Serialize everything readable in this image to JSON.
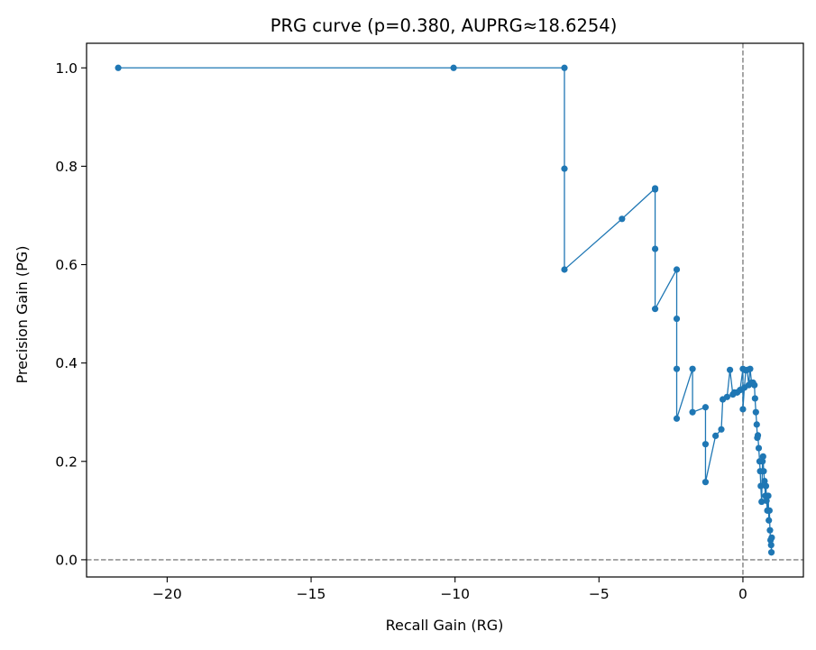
{
  "chart_data": {
    "type": "line",
    "title": "PRG curve (p=0.380, AUPRG≈18.6254)",
    "xlabel": "Recall Gain (RG)",
    "ylabel": "Precision Gain (PG)",
    "xlim": [
      -22.8,
      2.1
    ],
    "ylim": [
      -0.035,
      1.05
    ],
    "xticks": [
      -20,
      -15,
      -10,
      -5,
      0
    ],
    "xtick_labels": [
      "−20",
      "−15",
      "−10",
      "−5",
      "0"
    ],
    "yticks": [
      0.0,
      0.2,
      0.4,
      0.6,
      0.8,
      1.0
    ],
    "ytick_labels": [
      "0.0",
      "0.2",
      "0.4",
      "0.6",
      "0.8",
      "1.0"
    ],
    "grid": false,
    "reference_lines": {
      "x": 0,
      "y": 0,
      "color": "#808080",
      "style": "dashed"
    },
    "series": [
      {
        "color": "#1f77b4",
        "marker": "circle",
        "x": [
          -21.7,
          -10.05,
          -6.2,
          -6.2,
          -6.2,
          -4.2,
          -3.05,
          -3.05,
          -3.05,
          -3.05,
          -2.3,
          -2.3,
          -2.3,
          -2.3,
          -1.75,
          -1.75,
          -1.3,
          -1.3,
          -1.3,
          -0.95,
          -0.75,
          -0.7,
          -0.55,
          -0.45,
          -0.35,
          -0.3,
          -0.2,
          -0.1,
          0.0,
          0.0,
          0.05,
          0.1,
          0.15,
          0.2,
          0.25,
          0.3,
          0.35,
          0.4,
          0.42,
          0.45,
          0.48,
          0.5,
          0.52,
          0.55,
          0.58,
          0.6,
          0.62,
          0.65,
          0.68,
          0.7,
          0.72,
          0.75,
          0.78,
          0.8,
          0.82,
          0.85,
          0.88,
          0.9,
          0.92,
          0.94,
          0.96,
          0.98,
          0.99,
          1.0
        ],
        "y": [
          1.0,
          1.0,
          1.0,
          0.795,
          0.59,
          0.693,
          0.755,
          0.753,
          0.632,
          0.51,
          0.59,
          0.49,
          0.388,
          0.287,
          0.388,
          0.3,
          0.31,
          0.235,
          0.158,
          0.252,
          0.265,
          0.326,
          0.331,
          0.386,
          0.336,
          0.34,
          0.34,
          0.345,
          0.388,
          0.306,
          0.35,
          0.385,
          0.386,
          0.355,
          0.388,
          0.36,
          0.36,
          0.355,
          0.328,
          0.3,
          0.275,
          0.248,
          0.253,
          0.227,
          0.2,
          0.18,
          0.15,
          0.118,
          0.2,
          0.21,
          0.18,
          0.16,
          0.13,
          0.15,
          0.12,
          0.1,
          0.13,
          0.08,
          0.1,
          0.06,
          0.04,
          0.03,
          0.015,
          0.045
        ]
      }
    ]
  }
}
